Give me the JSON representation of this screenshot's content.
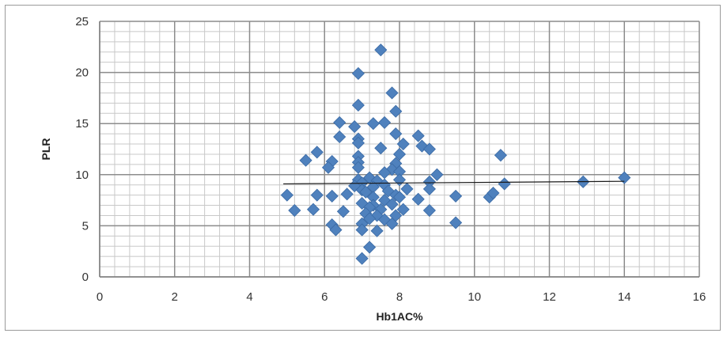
{
  "chart_data": {
    "type": "scatter",
    "title": "",
    "xlabel": "Hb1AC%",
    "ylabel": "PLR",
    "xlim": [
      0,
      16
    ],
    "ylim": [
      0,
      25
    ],
    "x_ticks": [
      0,
      2,
      4,
      6,
      8,
      10,
      12,
      14,
      16
    ],
    "y_ticks": [
      0,
      5,
      10,
      15,
      20,
      25
    ],
    "grid": true,
    "legend": "none",
    "marker_color": "#4f81bd",
    "trendline_color": "#1a1a1a",
    "trendline": {
      "x": [
        4.9,
        14.0
      ],
      "y": [
        9.1,
        9.35
      ]
    },
    "series": [
      {
        "points": [
          [
            7.5,
            22.2
          ],
          [
            6.9,
            19.9
          ],
          [
            7.8,
            18.0
          ],
          [
            6.9,
            16.8
          ],
          [
            7.9,
            16.2
          ],
          [
            6.4,
            15.1
          ],
          [
            7.3,
            15.0
          ],
          [
            7.6,
            15.1
          ],
          [
            6.8,
            14.7
          ],
          [
            7.9,
            14.0
          ],
          [
            8.5,
            13.8
          ],
          [
            6.4,
            13.7
          ],
          [
            6.9,
            13.5
          ],
          [
            6.9,
            13.1
          ],
          [
            8.1,
            13.0
          ],
          [
            7.5,
            12.6
          ],
          [
            8.6,
            12.8
          ],
          [
            8.8,
            12.5
          ],
          [
            5.8,
            12.2
          ],
          [
            8.0,
            12.0
          ],
          [
            10.7,
            11.9
          ],
          [
            6.9,
            11.8
          ],
          [
            5.5,
            11.4
          ],
          [
            6.2,
            11.3
          ],
          [
            6.9,
            11.2
          ],
          [
            7.9,
            11.1
          ],
          [
            6.1,
            10.7
          ],
          [
            6.9,
            10.7
          ],
          [
            7.8,
            10.5
          ],
          [
            8.0,
            10.3
          ],
          [
            7.6,
            10.2
          ],
          [
            9.0,
            10.0
          ],
          [
            7.2,
            9.7
          ],
          [
            6.9,
            9.5
          ],
          [
            7.4,
            9.4
          ],
          [
            8.8,
            9.3
          ],
          [
            8.0,
            9.5
          ],
          [
            10.8,
            9.1
          ],
          [
            12.9,
            9.3
          ],
          [
            14.0,
            9.7
          ],
          [
            7.0,
            9.2
          ],
          [
            7.6,
            9.0
          ],
          [
            6.8,
            8.9
          ],
          [
            7.3,
            8.8
          ],
          [
            8.2,
            8.6
          ],
          [
            7.0,
            8.5
          ],
          [
            7.7,
            8.4
          ],
          [
            8.8,
            8.6
          ],
          [
            6.6,
            8.1
          ],
          [
            7.1,
            8.3
          ],
          [
            7.9,
            8.0
          ],
          [
            5.0,
            8.0
          ],
          [
            5.8,
            8.0
          ],
          [
            6.2,
            7.9
          ],
          [
            7.3,
            7.8
          ],
          [
            7.6,
            7.5
          ],
          [
            8.0,
            7.8
          ],
          [
            8.5,
            7.6
          ],
          [
            9.5,
            7.9
          ],
          [
            10.4,
            7.8
          ],
          [
            10.5,
            8.2
          ],
          [
            7.0,
            7.2
          ],
          [
            7.3,
            7.0
          ],
          [
            7.8,
            7.1
          ],
          [
            7.2,
            6.8
          ],
          [
            7.5,
            6.6
          ],
          [
            8.1,
            6.6
          ],
          [
            5.2,
            6.5
          ],
          [
            5.7,
            6.6
          ],
          [
            6.5,
            6.4
          ],
          [
            7.1,
            6.2
          ],
          [
            8.8,
            6.5
          ],
          [
            7.4,
            6.0
          ],
          [
            7.9,
            6.0
          ],
          [
            7.2,
            5.7
          ],
          [
            7.6,
            5.6
          ],
          [
            7.8,
            5.2
          ],
          [
            7.0,
            5.2
          ],
          [
            6.2,
            5.1
          ],
          [
            9.5,
            5.3
          ],
          [
            6.3,
            4.6
          ],
          [
            7.0,
            4.6
          ],
          [
            7.4,
            4.5
          ],
          [
            7.2,
            2.9
          ],
          [
            7.0,
            1.8
          ]
        ]
      }
    ]
  }
}
